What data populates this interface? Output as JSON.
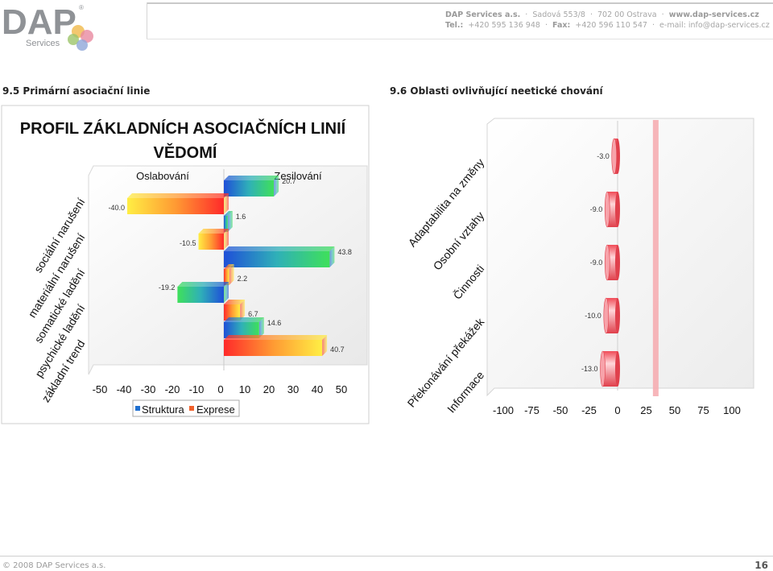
{
  "header": {
    "company": "DAP Services a.s.",
    "address": "Sadová 553/8",
    "city": "702 00 Ostrava",
    "web": "www.dap-services.cz",
    "tel_label": "Tel.:",
    "tel": "+420 595 136 948",
    "fax_label": "Fax:",
    "fax": "+420 596 110 547",
    "email": "e-mail: info@dap-services.cz",
    "logo_text": "DAP",
    "logo_sub": "Services",
    "logo_reg": "®"
  },
  "sections": {
    "left_title": "9.5 Primární asociační linie",
    "right_title": "9.6 Oblasti ovlivňující neetické chování"
  },
  "footer": {
    "copyright": "© 2008 DAP Services a.s.",
    "page": "16"
  },
  "chart_data": [
    {
      "type": "bar",
      "orientation": "horizontal",
      "title": "PROFIL ZÁKLADNÍCH ASOCIAČNÍCH LINIÍ VĚDOMÍ",
      "title_lines": [
        "PROFIL ZÁKLADNÍCH ASOCIAČNÍCH LINIÍ",
        "VĚDOMÍ"
      ],
      "categories": [
        "sociální narušení",
        "materiální narušení",
        "somatické ladění",
        "psychické ladění",
        "základní trend"
      ],
      "series": [
        {
          "name": "Struktura",
          "values": [
            20.7,
            1.6,
            43.8,
            -19.2,
            14.6
          ]
        },
        {
          "name": "Exprese",
          "values": [
            -40.0,
            -10.5,
            2.2,
            6.7,
            40.7
          ]
        }
      ],
      "value_labels": {
        "Struktura": [
          "20.7",
          "1.6",
          "43.8",
          "-19.2",
          "14.6"
        ],
        "Exprese": [
          "-40.0",
          "-10.5",
          "2.2",
          "6.7",
          "40.7"
        ]
      },
      "annotations": [
        "Oslabování",
        "Zesilování"
      ],
      "xlim": [
        -50,
        50
      ],
      "xticks": [
        -50,
        -40,
        -30,
        -20,
        -10,
        0,
        10,
        20,
        30,
        40,
        50
      ],
      "legend": "bottom",
      "colors": {
        "Struktura": "#1f6fd0",
        "Exprese": "#f0602a"
      }
    },
    {
      "type": "bar",
      "orientation": "horizontal",
      "categories": [
        "Adaptabilita na změny",
        "Osobní vztahy",
        "Činnosti",
        "Překonávání překážek",
        "Informace"
      ],
      "values": [
        -3.0,
        -9.0,
        -9.0,
        -10.0,
        -13.0
      ],
      "value_labels": [
        "-3.0",
        "-9.0",
        "-9.0",
        "-10.0",
        "-13.0"
      ],
      "xlim": [
        -100,
        100
      ],
      "xticks": [
        -100,
        -75,
        -50,
        -25,
        0,
        25,
        50,
        75,
        100
      ],
      "reference_line": 33,
      "colors": {
        "bar": "#f26d75",
        "reference": "#f6a9ae"
      }
    }
  ]
}
